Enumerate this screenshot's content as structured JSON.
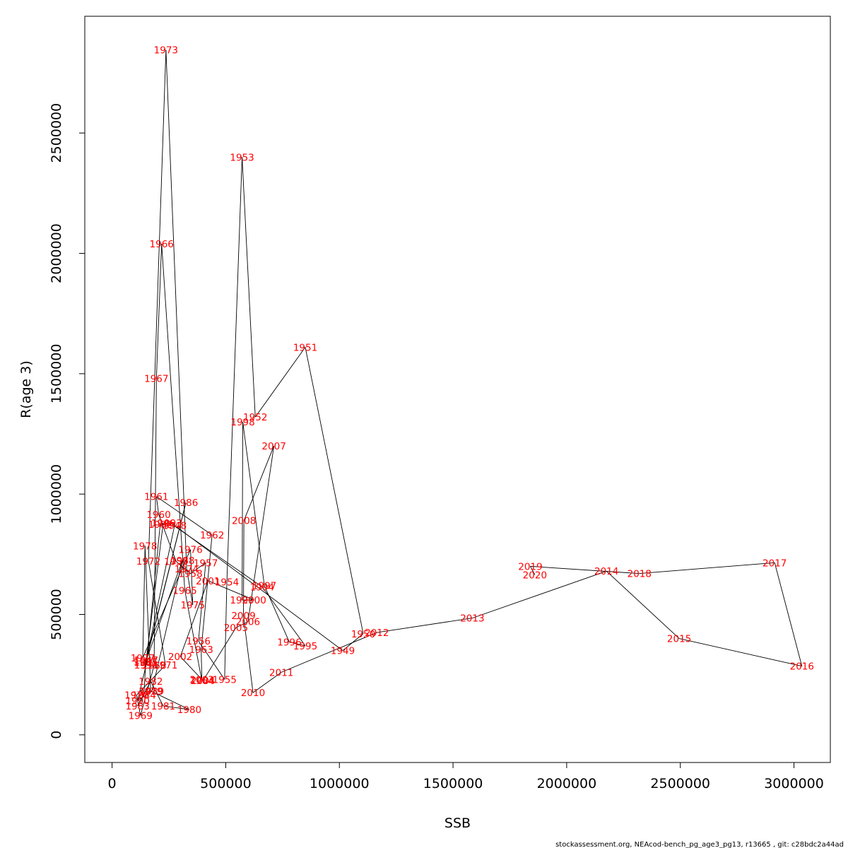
{
  "chart_data": {
    "type": "line",
    "xlabel": "SSB",
    "ylabel": "R(age 3)",
    "xlim": [
      -120000,
      3160000
    ],
    "ylim": [
      -115000,
      2985000
    ],
    "x_ticks": [
      0,
      500000,
      1000000,
      1500000,
      2000000,
      2500000,
      3000000
    ],
    "x_tick_labels": [
      "0",
      "500000",
      "1000000",
      "1500000",
      "2000000",
      "2500000",
      "3000000"
    ],
    "y_ticks": [
      0,
      500000,
      1000000,
      1500000,
      2000000,
      2500000
    ],
    "y_tick_labels": [
      "0",
      "500000",
      "1000000",
      "1500000",
      "2000000",
      "2500000"
    ],
    "label_color": "#ff0000",
    "line_color": "#000000",
    "points": [
      {
        "year": "1946",
        "ssb": 225000,
        "r": 880000
      },
      {
        "year": "1947",
        "ssb": 150000,
        "r": 310000
      },
      {
        "year": "1948",
        "ssb": 275000,
        "r": 870000
      },
      {
        "year": "1949",
        "ssb": 1015000,
        "r": 350000
      },
      {
        "year": "1950",
        "ssb": 1105000,
        "r": 420000
      },
      {
        "year": "1951",
        "ssb": 850000,
        "r": 1610000
      },
      {
        "year": "1952",
        "ssb": 630000,
        "r": 1320000
      },
      {
        "year": "1953",
        "ssb": 572000,
        "r": 2400000
      },
      {
        "year": "1954",
        "ssb": 505000,
        "r": 635000
      },
      {
        "year": "1955",
        "ssb": 495000,
        "r": 230000
      },
      {
        "year": "1956",
        "ssb": 380000,
        "r": 390000
      },
      {
        "year": "1957",
        "ssb": 412000,
        "r": 715000
      },
      {
        "year": "1958",
        "ssb": 345000,
        "r": 670000
      },
      {
        "year": "1959",
        "ssb": 282000,
        "r": 720000
      },
      {
        "year": "1960",
        "ssb": 205000,
        "r": 915000
      },
      {
        "year": "1961",
        "ssb": 195000,
        "r": 990000
      },
      {
        "year": "1962",
        "ssb": 440000,
        "r": 830000
      },
      {
        "year": "1963",
        "ssb": 392000,
        "r": 355000
      },
      {
        "year": "1964",
        "ssb": 395000,
        "r": 225000
      },
      {
        "year": "1965",
        "ssb": 320000,
        "r": 600000
      },
      {
        "year": "1966",
        "ssb": 218000,
        "r": 2040000
      },
      {
        "year": "1967",
        "ssb": 195000,
        "r": 1480000
      },
      {
        "year": "1968",
        "ssb": 185000,
        "r": 288000
      },
      {
        "year": "1969",
        "ssb": 125000,
        "r": 80000
      },
      {
        "year": "1970",
        "ssb": 108000,
        "r": 165000
      },
      {
        "year": "1971",
        "ssb": 235000,
        "r": 290000
      },
      {
        "year": "1972",
        "ssb": 160000,
        "r": 722000
      },
      {
        "year": "1973",
        "ssb": 237000,
        "r": 2845000
      },
      {
        "year": "1974",
        "ssb": 328000,
        "r": 690000
      },
      {
        "year": "1975",
        "ssb": 355000,
        "r": 540000
      },
      {
        "year": "1976",
        "ssb": 345000,
        "r": 770000
      },
      {
        "year": "1977",
        "ssb": 135000,
        "r": 320000
      },
      {
        "year": "1978",
        "ssb": 145000,
        "r": 785000
      },
      {
        "year": "1979",
        "ssb": 170000,
        "r": 182000
      },
      {
        "year": "1980",
        "ssb": 340000,
        "r": 105000
      },
      {
        "year": "1981",
        "ssb": 225000,
        "r": 120000
      },
      {
        "year": "1982",
        "ssb": 170000,
        "r": 222000
      },
      {
        "year": "1983",
        "ssb": 112000,
        "r": 120000
      },
      {
        "year": "1984",
        "ssb": 140000,
        "r": 165000
      },
      {
        "year": "1985",
        "ssb": 148000,
        "r": 300000
      },
      {
        "year": "1986",
        "ssb": 325000,
        "r": 965000
      },
      {
        "year": "1987",
        "ssb": 148000,
        "r": 305000
      },
      {
        "year": "1988",
        "ssb": 310000,
        "r": 725000
      },
      {
        "year": "1989",
        "ssb": 175000,
        "r": 182000
      },
      {
        "year": "1990",
        "ssb": 112000,
        "r": 142000
      },
      {
        "year": "1991",
        "ssb": 150000,
        "r": 290000
      },
      {
        "year": "1992",
        "ssb": 212000,
        "r": 875000
      },
      {
        "year": "1993",
        "ssb": 255000,
        "r": 880000
      },
      {
        "year": "1994",
        "ssb": 660000,
        "r": 615000
      },
      {
        "year": "1995",
        "ssb": 850000,
        "r": 370000
      },
      {
        "year": "1996",
        "ssb": 780000,
        "r": 385000
      },
      {
        "year": "1997",
        "ssb": 670000,
        "r": 620000
      },
      {
        "year": "1998",
        "ssb": 575000,
        "r": 1300000
      },
      {
        "year": "1999",
        "ssb": 572000,
        "r": 560000
      },
      {
        "year": "2000",
        "ssb": 625000,
        "r": 560000
      },
      {
        "year": "2001",
        "ssb": 422000,
        "r": 640000
      },
      {
        "year": "2002",
        "ssb": 300000,
        "r": 325000
      },
      {
        "year": "2003",
        "ssb": 395000,
        "r": 230000
      },
      {
        "year": "2004",
        "ssb": 400000,
        "r": 225000
      },
      {
        "year": "2005",
        "ssb": 545000,
        "r": 445000
      },
      {
        "year": "2006",
        "ssb": 598000,
        "r": 470000
      },
      {
        "year": "2007",
        "ssb": 712000,
        "r": 1200000
      },
      {
        "year": "2008",
        "ssb": 580000,
        "r": 890000
      },
      {
        "year": "2009",
        "ssb": 578000,
        "r": 495000
      },
      {
        "year": "2010",
        "ssb": 620000,
        "r": 175000
      },
      {
        "year": "2011",
        "ssb": 745000,
        "r": 260000
      },
      {
        "year": "2012",
        "ssb": 1165000,
        "r": 425000
      },
      {
        "year": "2013",
        "ssb": 1585000,
        "r": 485000
      },
      {
        "year": "2014",
        "ssb": 2175000,
        "r": 680000
      },
      {
        "year": "2015",
        "ssb": 2495000,
        "r": 400000
      },
      {
        "year": "2016",
        "ssb": 3035000,
        "r": 285000
      },
      {
        "year": "2017",
        "ssb": 2915000,
        "r": 715000
      },
      {
        "year": "2018",
        "ssb": 2320000,
        "r": 670000
      },
      {
        "year": "2019",
        "ssb": 1840000,
        "r": 700000
      },
      {
        "year": "2020",
        "ssb": 1860000,
        "r": 665000
      }
    ]
  },
  "footer": "stockassessment.org, NEAcod-bench_pg_age3_pg13, r13665 , git: c28bdc2a44ad"
}
